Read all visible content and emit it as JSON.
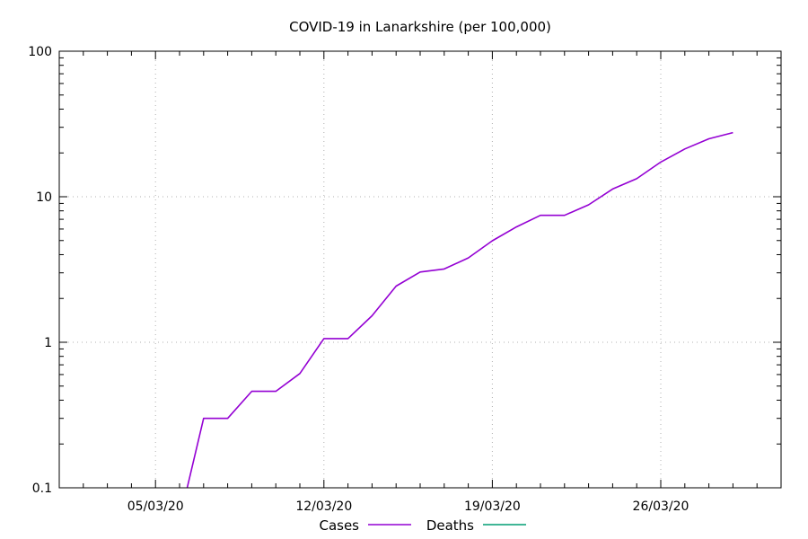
{
  "chart_data": {
    "type": "line",
    "title": "COVID-19 in Lanarkshire (per 100,000)",
    "xlabel": "",
    "ylabel": "",
    "yscale": "log",
    "ylim": [
      0.1,
      100
    ],
    "y_ticks": [
      0.1,
      1,
      10,
      100
    ],
    "y_tick_labels": [
      "0.1",
      "1",
      "10",
      "100"
    ],
    "xlim": [
      "2020-03-01",
      "2020-03-31"
    ],
    "x_ticks": [
      "2020-03-05",
      "2020-03-12",
      "2020-03-19",
      "2020-03-26"
    ],
    "x_tick_labels": [
      "05/03/20",
      "12/03/20",
      "19/03/20",
      "26/03/20"
    ],
    "grid": true,
    "legend": "bottom-center",
    "series": [
      {
        "name": "Cases",
        "color": "#9400d3",
        "x": [
          "2020-03-06",
          "2020-03-07",
          "2020-03-08",
          "2020-03-09",
          "2020-03-10",
          "2020-03-11",
          "2020-03-12",
          "2020-03-13",
          "2020-03-14",
          "2020-03-15",
          "2020-03-16",
          "2020-03-17",
          "2020-03-18",
          "2020-03-19",
          "2020-03-20",
          "2020-03-21",
          "2020-03-22",
          "2020-03-23",
          "2020-03-24",
          "2020-03-25",
          "2020-03-26",
          "2020-03-27",
          "2020-03-28",
          "2020-03-29"
        ],
        "y": [
          0.06,
          0.3,
          0.3,
          0.46,
          0.46,
          0.61,
          1.06,
          1.06,
          1.52,
          2.43,
          3.04,
          3.19,
          3.8,
          4.98,
          6.2,
          7.45,
          7.45,
          8.8,
          11.3,
          13.3,
          17.3,
          21.3,
          25.0,
          27.6
        ]
      },
      {
        "name": "Deaths",
        "color": "#009e73",
        "x": [],
        "y": []
      }
    ]
  }
}
